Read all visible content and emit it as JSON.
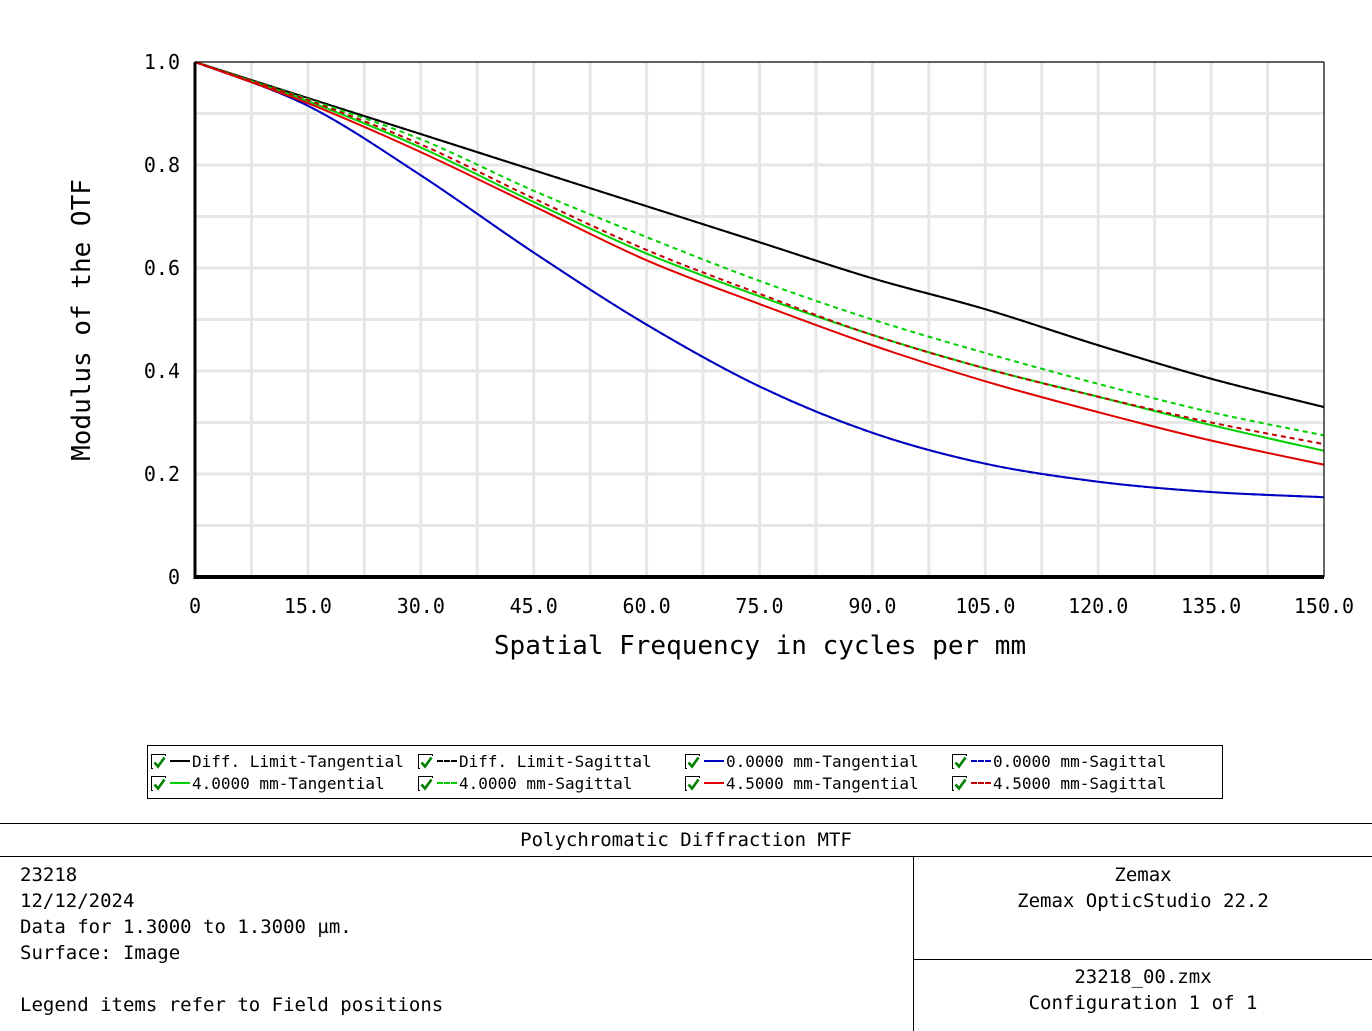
{
  "chart_data": {
    "type": "line",
    "title": "Polychromatic Diffraction MTF",
    "xlabel": "Spatial Frequency in cycles per mm",
    "ylabel": "Modulus of the OTF",
    "xlim": [
      0,
      150
    ],
    "ylim": [
      0,
      1
    ],
    "grid": true,
    "legend_position": "bottom",
    "x_ticks": [
      "0",
      "15.0",
      "30.0",
      "45.0",
      "60.0",
      "75.0",
      "90.0",
      "105.0",
      "120.0",
      "135.0",
      "150.0"
    ],
    "y_ticks": [
      "0",
      "0.2",
      "0.4",
      "0.6",
      "0.8",
      "1.0"
    ],
    "x": [
      0,
      15,
      30,
      45,
      60,
      75,
      90,
      105,
      120,
      135,
      150
    ],
    "series": [
      {
        "name": "Diff. Limit-Tangential",
        "color": "#000000",
        "dash": "solid",
        "values": [
          1.0,
          0.93,
          0.86,
          0.79,
          0.72,
          0.65,
          0.58,
          0.52,
          0.45,
          0.385,
          0.33
        ]
      },
      {
        "name": "Diff. Limit-Sagittal",
        "color": "#000000",
        "dash": "dashed",
        "values": [
          1.0,
          0.93,
          0.86,
          0.79,
          0.72,
          0.65,
          0.58,
          0.52,
          0.45,
          0.385,
          0.33
        ]
      },
      {
        "name": "0.0000 mm-Tangential",
        "color": "#0000c0",
        "dash": "solid",
        "values": [
          1.0,
          0.915,
          0.78,
          0.63,
          0.49,
          0.37,
          0.28,
          0.22,
          0.185,
          0.165,
          0.155
        ]
      },
      {
        "name": "0.0000 mm-Sagittal",
        "color": "#0000c0",
        "dash": "dashed",
        "values": [
          1.0,
          0.915,
          0.78,
          0.63,
          0.49,
          0.37,
          0.28,
          0.22,
          0.185,
          0.165,
          0.155
        ]
      },
      {
        "name": "4.0000 mm-Tangential",
        "color": "#00d000",
        "dash": "solid",
        "values": [
          1.0,
          0.924,
          0.834,
          0.728,
          0.628,
          0.545,
          0.47,
          0.405,
          0.35,
          0.295,
          0.245
        ]
      },
      {
        "name": "4.0000 mm-Sagittal",
        "color": "#00d000",
        "dash": "dashed",
        "values": [
          1.0,
          0.928,
          0.85,
          0.75,
          0.66,
          0.575,
          0.5,
          0.435,
          0.375,
          0.32,
          0.275
        ]
      },
      {
        "name": "4.5000 mm-Tangential",
        "color": "#e00000",
        "dash": "solid",
        "values": [
          1.0,
          0.92,
          0.825,
          0.72,
          0.615,
          0.53,
          0.45,
          0.38,
          0.32,
          0.265,
          0.218
        ]
      },
      {
        "name": "4.5000 mm-Sagittal",
        "color": "#c00000",
        "dash": "dashed",
        "values": [
          1.0,
          0.926,
          0.84,
          0.735,
          0.635,
          0.55,
          0.47,
          0.405,
          0.35,
          0.3,
          0.258
        ]
      }
    ]
  },
  "legend": {
    "items": [
      {
        "label": "Diff. Limit-Tangential",
        "color": "#000000",
        "dash": "solid",
        "checked": true
      },
      {
        "label": "Diff. Limit-Sagittal",
        "color": "#000000",
        "dash": "dashed",
        "checked": true
      },
      {
        "label": "0.0000 mm-Tangential",
        "color": "#0000c0",
        "dash": "solid",
        "checked": true
      },
      {
        "label": "0.0000 mm-Sagittal",
        "color": "#0000c0",
        "dash": "dashed",
        "checked": true
      },
      {
        "label": "4.0000 mm-Tangential",
        "color": "#00d000",
        "dash": "solid",
        "checked": true
      },
      {
        "label": "4.0000 mm-Sagittal",
        "color": "#00d000",
        "dash": "dashed",
        "checked": true
      },
      {
        "label": "4.5000 mm-Tangential",
        "color": "#e00000",
        "dash": "solid",
        "checked": true
      },
      {
        "label": "4.5000 mm-Sagittal",
        "color": "#c00000",
        "dash": "dashed",
        "checked": true
      }
    ]
  },
  "info": {
    "title": "Polychromatic Diffraction MTF",
    "left_lines": [
      "23218",
      "12/12/2024",
      "Data for 1.3000 to 1.3000 µm.",
      "Surface: Image",
      "",
      "Legend items refer to Field positions"
    ],
    "right_top_lines": [
      "Zemax",
      "Zemax OpticStudio 22.2"
    ],
    "right_bottom_lines": [
      "23218_00.zmx",
      "Configuration 1 of 1"
    ]
  }
}
